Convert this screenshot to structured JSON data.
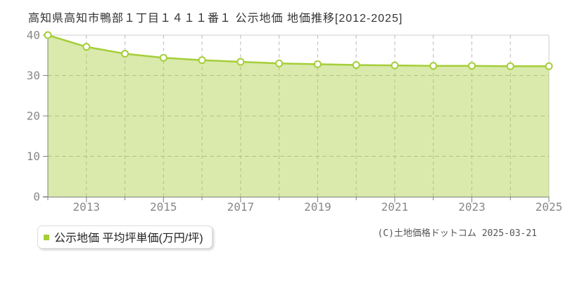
{
  "page": {
    "title": "高知県高知市鴨部１丁目１４１１番１ 公示地価 地価推移[2012-2025]",
    "copyright": "(C)土地価格ドットコム 2025-03-21"
  },
  "legend": {
    "label": "公示地価 平均坪単価(万円/坪)"
  },
  "chart_data": {
    "type": "area",
    "title": "高知県高知市鴨部１丁目１４１１番１ 公示地価 地価推移[2012-2025]",
    "x": [
      2012,
      2013,
      2014,
      2015,
      2016,
      2017,
      2018,
      2019,
      2020,
      2021,
      2022,
      2023,
      2024,
      2025
    ],
    "series": [
      {
        "name": "公示地価 平均坪単価(万円/坪)",
        "values": [
          40.0,
          37.1,
          35.4,
          34.4,
          33.8,
          33.4,
          33.0,
          32.8,
          32.6,
          32.5,
          32.4,
          32.4,
          32.3,
          32.3
        ]
      }
    ],
    "ylabel": "",
    "xlabel": "",
    "ylim": [
      0,
      40
    ],
    "yticks": [
      0,
      10,
      20,
      30,
      40
    ],
    "xtick_label_years": [
      2013,
      2015,
      2017,
      2019,
      2021,
      2023,
      2025
    ],
    "grid": true,
    "grid_style": "dashed",
    "legend_position": "bottom-left",
    "colors": {
      "line": "#a5ce39",
      "fill": "rgba(165,206,57,0.42)",
      "marker_fill": "#ffffff",
      "grid": "#bbbbbb",
      "axis": "#808080",
      "frame": "#cccccc",
      "tick_text": "#888888"
    }
  }
}
